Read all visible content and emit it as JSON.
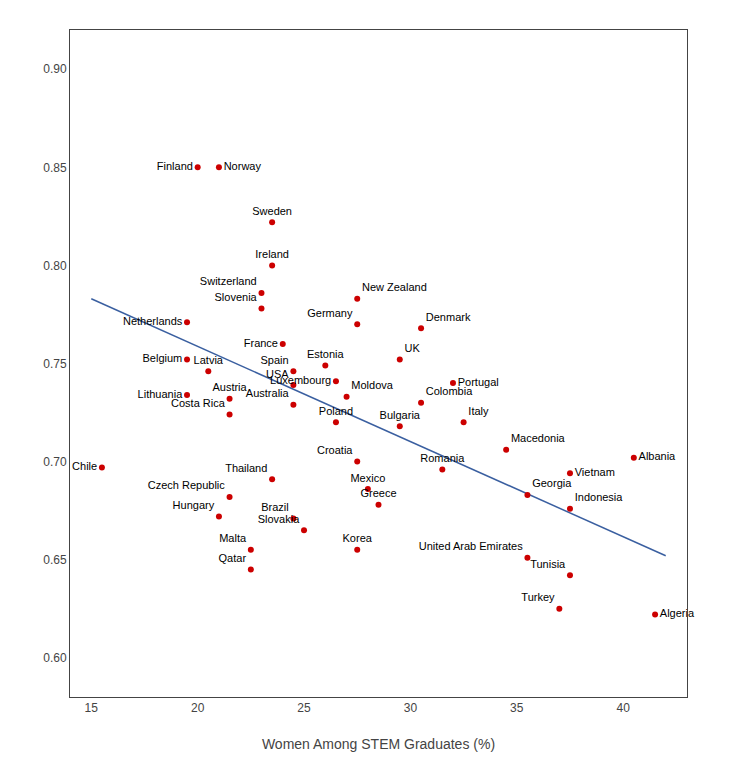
{
  "chart_data": {
    "type": "scatter",
    "xlabel": "Women Among STEM Graduates (%)",
    "labels": [
      "Finland",
      "Norway",
      "Sweden",
      "Ireland",
      "Switzerland",
      "Slovenia",
      "Netherlands",
      "Belgium",
      "Latvia",
      "Lithuania",
      "Austria",
      "Costa Rica",
      "France",
      "Spain",
      "USA",
      "Australia",
      "Estonia",
      "Luxembourg",
      "Moldova",
      "Poland",
      "New Zealand",
      "Germany",
      "Denmark",
      "UK",
      "Portugal",
      "Colombia",
      "Bulgaria",
      "Italy",
      "Croatia",
      "Romania",
      "Macedonia",
      "Albania",
      "Vietnam",
      "Georgia",
      "Indonesia",
      "Thailand",
      "Czech Republic",
      "Hungary",
      "Malta",
      "Qatar",
      "Brazil",
      "Slovakia",
      "Mexico",
      "Greece",
      "Korea",
      "United Arab Emirates",
      "Tunisia",
      "Turkey",
      "Algeria",
      "Chile"
    ],
    "x": [
      20.0,
      21.0,
      23.5,
      23.5,
      23.0,
      23.0,
      19.5,
      19.5,
      20.5,
      19.5,
      21.5,
      21.5,
      24.0,
      24.5,
      24.5,
      24.5,
      26.0,
      26.5,
      27.0,
      26.5,
      27.5,
      27.5,
      30.5,
      29.5,
      32.0,
      30.5,
      29.5,
      32.5,
      27.5,
      31.5,
      34.5,
      40.5,
      37.5,
      35.5,
      37.5,
      23.5,
      21.5,
      21.0,
      22.5,
      22.5,
      24.5,
      25.0,
      28.0,
      28.5,
      27.5,
      35.5,
      37.5,
      37.0,
      41.5,
      15.5
    ],
    "values": [
      0.85,
      0.85,
      0.822,
      0.8,
      0.786,
      0.778,
      0.771,
      0.752,
      0.746,
      0.734,
      0.732,
      0.724,
      0.76,
      0.746,
      0.739,
      0.729,
      0.749,
      0.741,
      0.733,
      0.72,
      0.783,
      0.77,
      0.768,
      0.752,
      0.74,
      0.73,
      0.718,
      0.72,
      0.7,
      0.696,
      0.706,
      0.702,
      0.694,
      0.683,
      0.676,
      0.691,
      0.682,
      0.672,
      0.655,
      0.645,
      0.671,
      0.665,
      0.686,
      0.678,
      0.655,
      0.651,
      0.642,
      0.625,
      0.622,
      0.697
    ],
    "color": "#cc0000",
    "trendline": {
      "x": [
        15,
        42
      ],
      "values": [
        0.783,
        0.652
      ],
      "color": "#3a5fa0"
    },
    "xlim": [
      14,
      43
    ],
    "ylim": [
      0.58,
      0.92
    ],
    "xticks": [
      15,
      20,
      25,
      30,
      35,
      40
    ],
    "yticks": [
      {
        "value": 0.6,
        "label": "0.60"
      },
      0.65,
      {
        "value": 0.7,
        "label": "0.70"
      },
      0.75,
      {
        "value": 0.8,
        "label": "0.80"
      },
      0.85,
      {
        "value": 0.9,
        "label": "0.90"
      }
    ],
    "grid": false
  }
}
